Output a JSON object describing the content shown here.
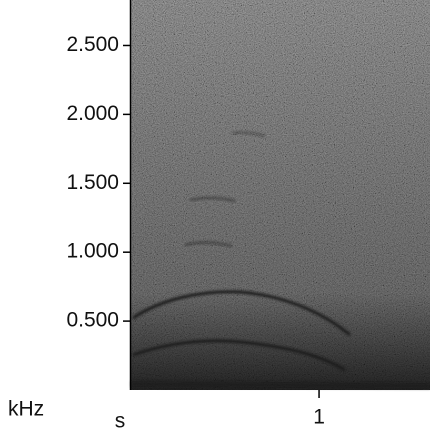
{
  "chart_data": {
    "type": "spectrogram",
    "x_label": "s",
    "y_label": "kHz",
    "xlim": [
      0,
      1.59
    ],
    "xticks": [
      1
    ],
    "ylim": [
      0,
      2.83
    ],
    "yticks": [
      {
        "value": 0.5,
        "label": "0.500"
      },
      {
        "value": 1,
        "label": "1.000"
      },
      {
        "value": 1.5,
        "label": "1.500"
      },
      {
        "value": 2,
        "label": "2.000"
      },
      {
        "value": 2.5,
        "label": "2.500"
      }
    ]
  }
}
